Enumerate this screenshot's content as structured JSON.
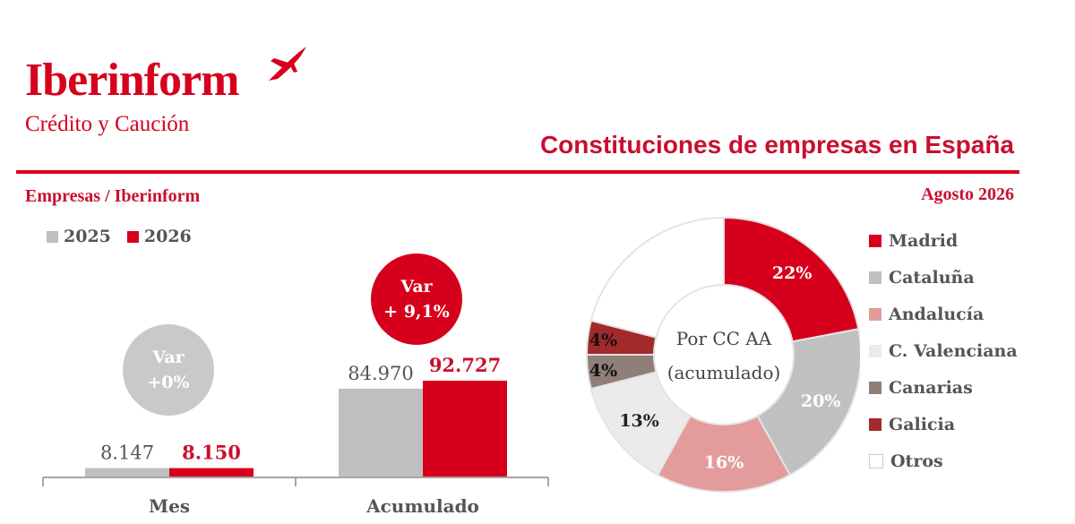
{
  "header": {
    "logo_name": "Iberinform",
    "logo_tagline": "Crédito y Caución",
    "title": "Constituciones de empresas en España",
    "subtitle_left": "Empresas / Iberinform",
    "subtitle_right": "Agosto 2026"
  },
  "colors": {
    "accent": "#d6001c",
    "gray": "#bfbfbf"
  },
  "chart_data": [
    {
      "type": "bar",
      "categories": [
        "Mes",
        "Acumulado"
      ],
      "series": [
        {
          "name": "2025",
          "color": "#bfbfbf",
          "values": [
            8147,
            84970
          ],
          "labels": [
            "8.147",
            "84.970"
          ]
        },
        {
          "name": "2026",
          "color": "#d6001c",
          "values": [
            8150,
            92727
          ],
          "labels": [
            "8.150",
            "92.727"
          ]
        }
      ],
      "annotations": [
        {
          "category": "Mes",
          "line1": "Var",
          "line2": "+0%",
          "color": "#c9c9c9"
        },
        {
          "category": "Acumulado",
          "line1": "Var",
          "line2": "+ 9,1%",
          "color": "#d6001c"
        }
      ],
      "legend_position": "top-left"
    },
    {
      "type": "pie",
      "center_label": [
        "Por CC AA",
        "(acumulado)"
      ],
      "slices": [
        {
          "name": "Madrid",
          "value": 22,
          "label": "22%",
          "color": "#d6001c",
          "text_color": "#ffffff"
        },
        {
          "name": "Cataluña",
          "value": 20,
          "label": "20%",
          "color": "#c0c0c0",
          "text_color": "#ffffff"
        },
        {
          "name": "Andalucía",
          "value": 16,
          "label": "16%",
          "color": "#e39b9b",
          "text_color": "#ffffff"
        },
        {
          "name": "C. Valenciana",
          "value": 13,
          "label": "13%",
          "color": "#ebebeb",
          "text_color": "#222222"
        },
        {
          "name": "Canarias",
          "value": 4,
          "label": "4%",
          "color": "#8f7f78",
          "text_color": "#111111"
        },
        {
          "name": "Galicia",
          "value": 4,
          "label": "4%",
          "color": "#a32a2a",
          "text_color": "#111111"
        },
        {
          "name": "Otros",
          "value": 21,
          "label": "",
          "color": "#ffffff",
          "text_color": "#111111"
        }
      ],
      "legend_position": "right"
    }
  ]
}
